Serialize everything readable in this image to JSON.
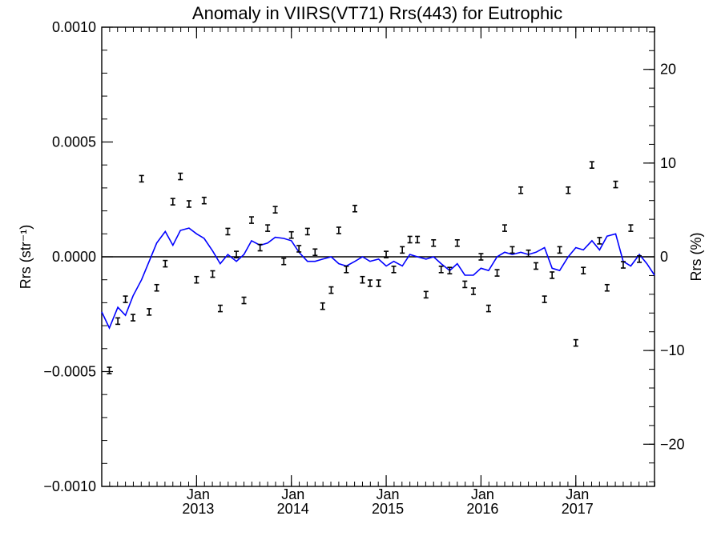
{
  "chart_data": {
    "type": "scatter",
    "title": "Anomaly in VIIRS(VT71) Rrs(443) for Eutrophic",
    "ylabel_left": "Rrs (str⁻¹)",
    "ylabel_right": "Rrs (%)",
    "xlabel": "",
    "x_unit": "year (decimal)",
    "xlim": [
      2012.0,
      2017.83
    ],
    "ylim_left": [
      -0.001,
      0.001
    ],
    "ylim_right": [
      -24.5,
      24.5
    ],
    "left_ticks": [
      {
        "value": 0.001,
        "label": "0.0010"
      },
      {
        "value": 0.0005,
        "label": "0.0005"
      },
      {
        "value": 0.0,
        "label": "0.0000"
      },
      {
        "value": -0.0005,
        "label": "−0.0005"
      },
      {
        "value": -0.001,
        "label": "−0.0010"
      }
    ],
    "right_ticks": [
      {
        "value": 20,
        "label": "20"
      },
      {
        "value": 10,
        "label": "10"
      },
      {
        "value": 0,
        "label": "0"
      },
      {
        "value": -10,
        "label": "−10"
      },
      {
        "value": -20,
        "label": "−20"
      }
    ],
    "x_ticks": [
      {
        "value": 2013.0,
        "label1": "Jan",
        "label2": "2013"
      },
      {
        "value": 2014.0,
        "label1": "Jan",
        "label2": "2014"
      },
      {
        "value": 2015.0,
        "label1": "Jan",
        "label2": "2015"
      },
      {
        "value": 2016.0,
        "label1": "Jan",
        "label2": "2016"
      },
      {
        "value": 2017.0,
        "label1": "Jan",
        "label2": "2017"
      }
    ],
    "zero_line": 0.0,
    "grid": false,
    "series": [
      {
        "type": "errorbar-points",
        "color": "#000000",
        "points": [
          {
            "x": 2012.08,
            "y": -0.000495
          },
          {
            "x": 2012.17,
            "y": -0.00028
          },
          {
            "x": 2012.25,
            "y": -0.000185
          },
          {
            "x": 2012.33,
            "y": -0.000265
          },
          {
            "x": 2012.42,
            "y": 0.00034
          },
          {
            "x": 2012.5,
            "y": -0.00024
          },
          {
            "x": 2012.58,
            "y": -0.000135
          },
          {
            "x": 2012.67,
            "y": -3e-05
          },
          {
            "x": 2012.75,
            "y": 0.00024
          },
          {
            "x": 2012.83,
            "y": 0.00035
          },
          {
            "x": 2012.92,
            "y": 0.00023
          },
          {
            "x": 2013.0,
            "y": -0.0001
          },
          {
            "x": 2013.08,
            "y": 0.000245
          },
          {
            "x": 2013.17,
            "y": -7.5e-05
          },
          {
            "x": 2013.25,
            "y": -0.000225
          },
          {
            "x": 2013.33,
            "y": 0.00011
          },
          {
            "x": 2013.42,
            "y": 1e-05
          },
          {
            "x": 2013.5,
            "y": -0.00019
          },
          {
            "x": 2013.58,
            "y": 0.00016
          },
          {
            "x": 2013.67,
            "y": 4e-05
          },
          {
            "x": 2013.75,
            "y": 0.000125
          },
          {
            "x": 2013.83,
            "y": 0.000205
          },
          {
            "x": 2013.92,
            "y": -2e-05
          },
          {
            "x": 2014.0,
            "y": 9.5e-05
          },
          {
            "x": 2014.08,
            "y": 3.5e-05
          },
          {
            "x": 2014.17,
            "y": 0.00011
          },
          {
            "x": 2014.25,
            "y": 2e-05
          },
          {
            "x": 2014.33,
            "y": -0.000215
          },
          {
            "x": 2014.42,
            "y": -0.000145
          },
          {
            "x": 2014.5,
            "y": 0.000115
          },
          {
            "x": 2014.58,
            "y": -5.5e-05
          },
          {
            "x": 2014.67,
            "y": 0.00021
          },
          {
            "x": 2014.75,
            "y": -0.0001
          },
          {
            "x": 2014.83,
            "y": -0.000115
          },
          {
            "x": 2014.92,
            "y": -0.000115
          },
          {
            "x": 2015.0,
            "y": 1e-05
          },
          {
            "x": 2015.08,
            "y": -5.5e-05
          },
          {
            "x": 2015.17,
            "y": 3e-05
          },
          {
            "x": 2015.25,
            "y": 7.5e-05
          },
          {
            "x": 2015.33,
            "y": 7.5e-05
          },
          {
            "x": 2015.42,
            "y": -0.000165
          },
          {
            "x": 2015.5,
            "y": 6e-05
          },
          {
            "x": 2015.58,
            "y": -5.5e-05
          },
          {
            "x": 2015.67,
            "y": -6e-05
          },
          {
            "x": 2015.75,
            "y": 6e-05
          },
          {
            "x": 2015.83,
            "y": -0.00012
          },
          {
            "x": 2015.92,
            "y": -0.00015
          },
          {
            "x": 2016.0,
            "y": 0.0
          },
          {
            "x": 2016.08,
            "y": -0.000225
          },
          {
            "x": 2016.17,
            "y": -7e-05
          },
          {
            "x": 2016.25,
            "y": 0.000125
          },
          {
            "x": 2016.33,
            "y": 3e-05
          },
          {
            "x": 2016.42,
            "y": 0.00029
          },
          {
            "x": 2016.5,
            "y": 1.5e-05
          },
          {
            "x": 2016.58,
            "y": -4e-05
          },
          {
            "x": 2016.67,
            "y": -0.000185
          },
          {
            "x": 2016.75,
            "y": -8e-05
          },
          {
            "x": 2016.83,
            "y": 3e-05
          },
          {
            "x": 2016.92,
            "y": 0.00029
          },
          {
            "x": 2017.0,
            "y": -0.000375
          },
          {
            "x": 2017.08,
            "y": -6e-05
          },
          {
            "x": 2017.17,
            "y": 0.0004
          },
          {
            "x": 2017.25,
            "y": 7e-05
          },
          {
            "x": 2017.33,
            "y": -0.000135
          },
          {
            "x": 2017.42,
            "y": 0.000315
          },
          {
            "x": 2017.5,
            "y": -3.5e-05
          },
          {
            "x": 2017.58,
            "y": 0.000125
          },
          {
            "x": 2017.67,
            "y": -1e-05
          }
        ]
      },
      {
        "type": "line",
        "color": "#0000ff",
        "points": [
          {
            "x": 2012.0,
            "y": -0.00024
          },
          {
            "x": 2012.08,
            "y": -0.00031
          },
          {
            "x": 2012.17,
            "y": -0.00022
          },
          {
            "x": 2012.25,
            "y": -0.000255
          },
          {
            "x": 2012.33,
            "y": -0.00017
          },
          {
            "x": 2012.42,
            "y": -0.0001
          },
          {
            "x": 2012.5,
            "y": -2e-05
          },
          {
            "x": 2012.58,
            "y": 6e-05
          },
          {
            "x": 2012.67,
            "y": 0.00011
          },
          {
            "x": 2012.75,
            "y": 5e-05
          },
          {
            "x": 2012.83,
            "y": 0.000115
          },
          {
            "x": 2012.92,
            "y": 0.000125
          },
          {
            "x": 2013.0,
            "y": 0.0001
          },
          {
            "x": 2013.08,
            "y": 8e-05
          },
          {
            "x": 2013.17,
            "y": 2.5e-05
          },
          {
            "x": 2013.25,
            "y": -3e-05
          },
          {
            "x": 2013.33,
            "y": 1e-05
          },
          {
            "x": 2013.42,
            "y": -2e-05
          },
          {
            "x": 2013.5,
            "y": 1e-05
          },
          {
            "x": 2013.58,
            "y": 7e-05
          },
          {
            "x": 2013.67,
            "y": 5e-05
          },
          {
            "x": 2013.75,
            "y": 6e-05
          },
          {
            "x": 2013.83,
            "y": 8.5e-05
          },
          {
            "x": 2013.92,
            "y": 8e-05
          },
          {
            "x": 2014.0,
            "y": 7e-05
          },
          {
            "x": 2014.08,
            "y": 2e-05
          },
          {
            "x": 2014.17,
            "y": -2e-05
          },
          {
            "x": 2014.25,
            "y": -2e-05
          },
          {
            "x": 2014.33,
            "y": -1e-05
          },
          {
            "x": 2014.42,
            "y": 0.0
          },
          {
            "x": 2014.5,
            "y": -3e-05
          },
          {
            "x": 2014.58,
            "y": -4e-05
          },
          {
            "x": 2014.67,
            "y": -2e-05
          },
          {
            "x": 2014.75,
            "y": 0.0
          },
          {
            "x": 2014.83,
            "y": -2e-05
          },
          {
            "x": 2014.92,
            "y": -1e-05
          },
          {
            "x": 2015.0,
            "y": -4e-05
          },
          {
            "x": 2015.08,
            "y": -2e-05
          },
          {
            "x": 2015.17,
            "y": -4e-05
          },
          {
            "x": 2015.25,
            "y": 1e-05
          },
          {
            "x": 2015.33,
            "y": 0.0
          },
          {
            "x": 2015.42,
            "y": -1e-05
          },
          {
            "x": 2015.5,
            "y": 0.0
          },
          {
            "x": 2015.58,
            "y": -3e-05
          },
          {
            "x": 2015.67,
            "y": -6e-05
          },
          {
            "x": 2015.75,
            "y": -3e-05
          },
          {
            "x": 2015.83,
            "y": -8e-05
          },
          {
            "x": 2015.92,
            "y": -8e-05
          },
          {
            "x": 2016.0,
            "y": -5e-05
          },
          {
            "x": 2016.08,
            "y": -6e-05
          },
          {
            "x": 2016.17,
            "y": 0.0
          },
          {
            "x": 2016.25,
            "y": 2e-05
          },
          {
            "x": 2016.33,
            "y": 1e-05
          },
          {
            "x": 2016.42,
            "y": 2e-05
          },
          {
            "x": 2016.5,
            "y": 1e-05
          },
          {
            "x": 2016.58,
            "y": 2e-05
          },
          {
            "x": 2016.67,
            "y": 4e-05
          },
          {
            "x": 2016.75,
            "y": -5e-05
          },
          {
            "x": 2016.83,
            "y": -6e-05
          },
          {
            "x": 2016.92,
            "y": 0.0
          },
          {
            "x": 2017.0,
            "y": 4e-05
          },
          {
            "x": 2017.08,
            "y": 3e-05
          },
          {
            "x": 2017.17,
            "y": 7e-05
          },
          {
            "x": 2017.25,
            "y": 3e-05
          },
          {
            "x": 2017.33,
            "y": 9e-05
          },
          {
            "x": 2017.42,
            "y": 0.0001
          },
          {
            "x": 2017.5,
            "y": -2e-05
          },
          {
            "x": 2017.58,
            "y": -4e-05
          },
          {
            "x": 2017.67,
            "y": 1e-05
          },
          {
            "x": 2017.75,
            "y": -3e-05
          },
          {
            "x": 2017.83,
            "y": -8e-05
          }
        ]
      }
    ]
  }
}
